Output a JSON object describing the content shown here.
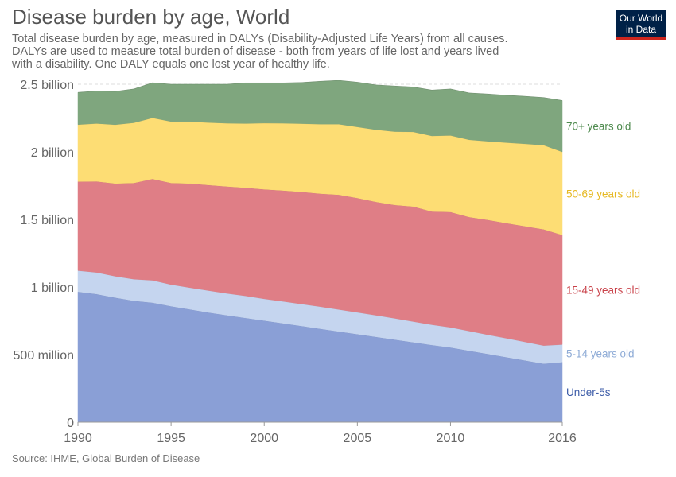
{
  "title": "Disease burden by age, World",
  "subtitle": "Total disease burden by age, measured in DALYs (Disability-Adjusted Life Years) from all causes. DALYs are used to measure total burden of disease - both from years of life lost and years lived with a disability. One DALY equals one lost year of healthy life.",
  "logo": {
    "line1": "Our World",
    "line2": "in Data",
    "bg_color": "#002147",
    "accent_color": "#ce261e"
  },
  "source": "Source: IHME, Global Burden of Disease",
  "chart_data": {
    "type": "area",
    "stacked": true,
    "x": [
      1990,
      1991,
      1992,
      1993,
      1994,
      1995,
      1996,
      1997,
      1998,
      1999,
      2000,
      2001,
      2002,
      2003,
      2004,
      2005,
      2006,
      2007,
      2008,
      2009,
      2010,
      2011,
      2012,
      2013,
      2014,
      2015,
      2016
    ],
    "xlim": [
      1990,
      2016
    ],
    "ylim": [
      0,
      2500000000
    ],
    "grid": true,
    "legend": "right-inline",
    "x_ticks": [
      {
        "value": 1990,
        "label": "1990"
      },
      {
        "value": 1995,
        "label": "1995"
      },
      {
        "value": 2000,
        "label": "2000"
      },
      {
        "value": 2005,
        "label": "2005"
      },
      {
        "value": 2010,
        "label": "2010"
      },
      {
        "value": 2016,
        "label": "2016"
      }
    ],
    "y_ticks": [
      {
        "value": 0,
        "label": "0"
      },
      {
        "value": 500000000,
        "label": "500 million"
      },
      {
        "value": 1000000000,
        "label": "1 billion"
      },
      {
        "value": 1500000000,
        "label": "1.5 billion"
      },
      {
        "value": 2000000000,
        "label": "2 billion"
      },
      {
        "value": 2500000000,
        "label": "2.5 billion"
      }
    ],
    "series": [
      {
        "name": "Under-5s",
        "color": "#8a9fd6",
        "label_color": "#3d5ca8",
        "values": [
          965000000,
          948000000,
          922000000,
          898000000,
          885000000,
          858000000,
          835000000,
          812000000,
          791000000,
          771000000,
          752000000,
          732000000,
          712000000,
          691000000,
          671000000,
          651000000,
          631000000,
          611000000,
          591000000,
          571000000,
          553000000,
          529000000,
          505000000,
          481000000,
          457000000,
          433000000,
          445000000
        ]
      },
      {
        "name": "5-14 years old",
        "color": "#c5d5ef",
        "label_color": "#8eabd6",
        "values": [
          157000000,
          160000000,
          158000000,
          160000000,
          165000000,
          160000000,
          161000000,
          162000000,
          162000000,
          164000000,
          161000000,
          162000000,
          163000000,
          164000000,
          163000000,
          162000000,
          160000000,
          158000000,
          154000000,
          150000000,
          149000000,
          146000000,
          142000000,
          140000000,
          137000000,
          134000000,
          130000000
        ]
      },
      {
        "name": "15-49 years old",
        "color": "#df7e86",
        "label_color": "#c9424a",
        "values": [
          658000000,
          674000000,
          686000000,
          712000000,
          750000000,
          752000000,
          770000000,
          781000000,
          791000000,
          800000000,
          810000000,
          820000000,
          829000000,
          836000000,
          849000000,
          846000000,
          839000000,
          838000000,
          851000000,
          838000000,
          853000000,
          843000000,
          850000000,
          852000000,
          856000000,
          860000000,
          810000000
        ]
      },
      {
        "name": "50-69 years old",
        "color": "#fddd74",
        "label_color": "#e6b820",
        "values": [
          422000000,
          428000000,
          435000000,
          445000000,
          452000000,
          455000000,
          458000000,
          462000000,
          468000000,
          475000000,
          490000000,
          498000000,
          505000000,
          514000000,
          522000000,
          526000000,
          534000000,
          543000000,
          552000000,
          559000000,
          567000000,
          572000000,
          582000000,
          596000000,
          610000000,
          623000000,
          615000000
        ]
      },
      {
        "name": "70+ years old",
        "color": "#7fa67e",
        "label_color": "#4d8a4d",
        "values": [
          238000000,
          240000000,
          246000000,
          250000000,
          259000000,
          275000000,
          276000000,
          283000000,
          288000000,
          300000000,
          297000000,
          298000000,
          304000000,
          317000000,
          324000000,
          330000000,
          331000000,
          337000000,
          332000000,
          339000000,
          343000000,
          346000000,
          349000000,
          350000000,
          351000000,
          352000000,
          380000000
        ]
      }
    ]
  }
}
